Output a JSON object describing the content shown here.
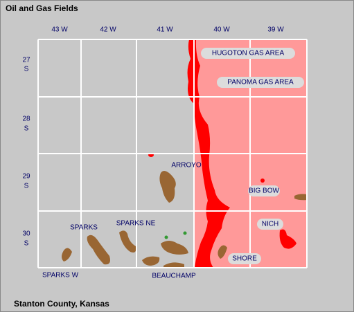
{
  "title": "Oil and Gas Fields",
  "footer": "Stanton County, Kansas",
  "grid": {
    "columns": [
      "43 W",
      "42 W",
      "41 W",
      "40 W",
      "39 W"
    ],
    "rows": [
      {
        "number": "27",
        "direction": "S"
      },
      {
        "number": "28",
        "direction": "S"
      },
      {
        "number": "29",
        "direction": "S"
      },
      {
        "number": "30",
        "direction": "S"
      }
    ]
  },
  "fields": [
    {
      "label": "HUGOTON GAS AREA"
    },
    {
      "label": "PANOMA GAS AREA"
    },
    {
      "label": "ARROYO"
    },
    {
      "label": "BIG BOW"
    },
    {
      "label": "NICH"
    },
    {
      "label": "SPARKS"
    },
    {
      "label": "SPARKS NE"
    },
    {
      "label": "SHORE"
    },
    {
      "label": "SPARKS W"
    },
    {
      "label": "BEAUCHAMP"
    }
  ]
}
